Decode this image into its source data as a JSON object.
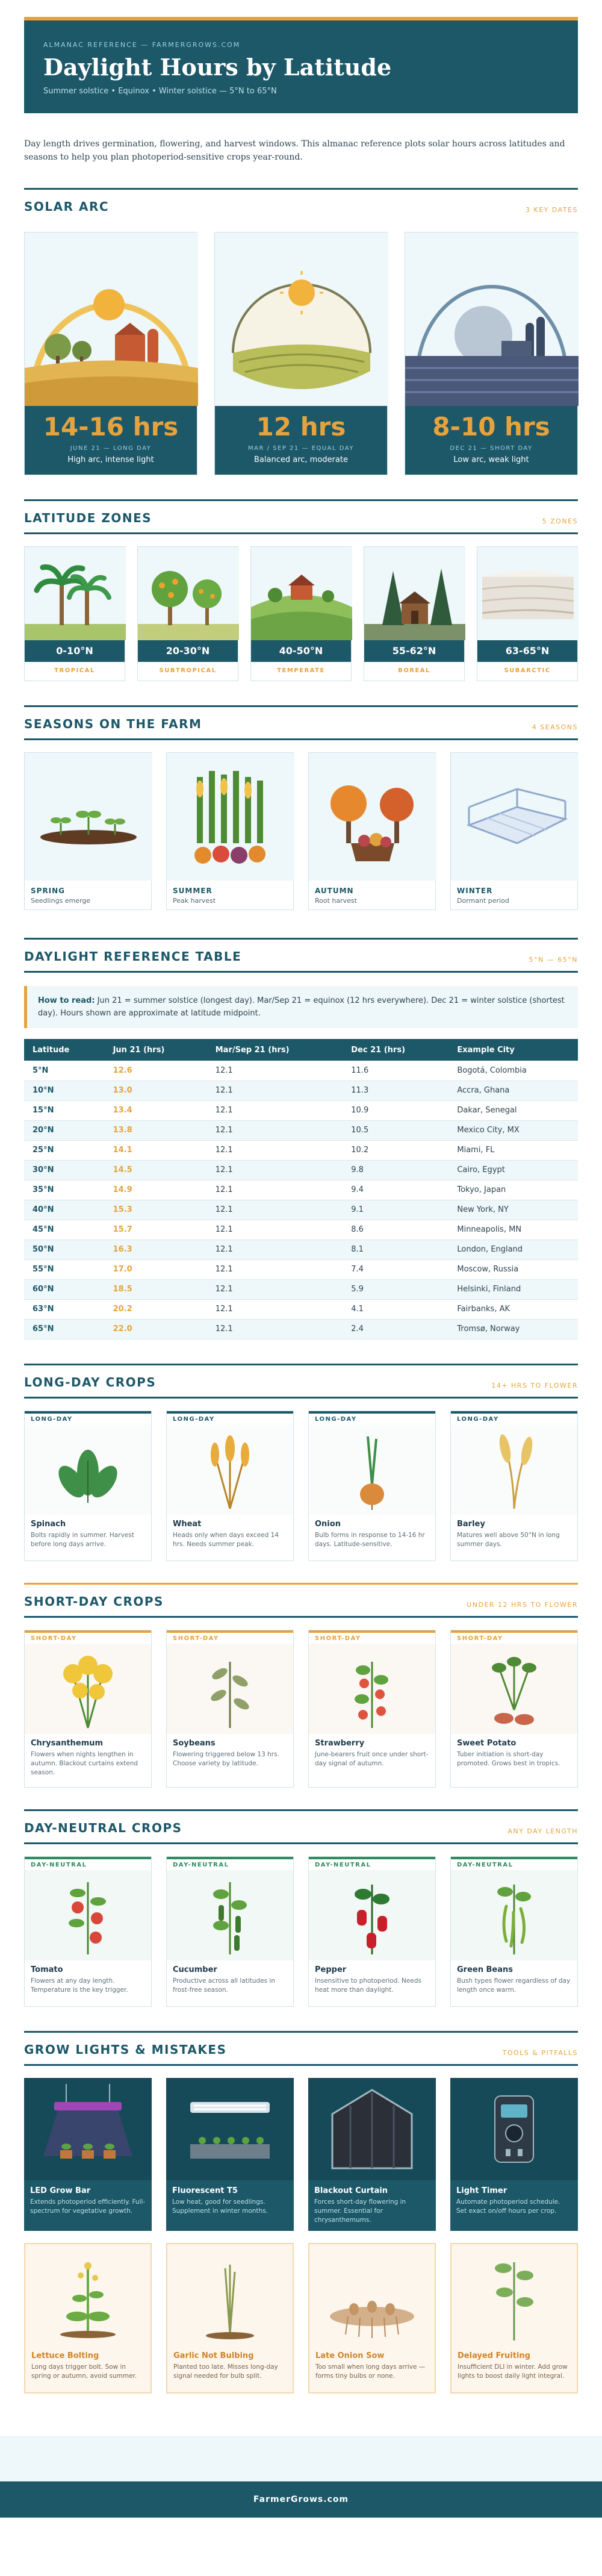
{
  "header": {
    "kicker": "ALMANAC REFERENCE — FARMERGROWS.COM",
    "title": "Daylight Hours by Latitude",
    "subtitle": "Summer solstice • Equinox • Winter solstice — 5°N to 65°N"
  },
  "intro": "Day length drives germination, flowering, and harvest windows. This almanac reference plots solar hours across latitudes and seasons to help you plan photoperiod-sensitive crops year-round.",
  "solar": {
    "title": "SOLAR ARC",
    "tag": "3 KEY DATES",
    "cards": [
      {
        "hours": "14-16 hrs",
        "date": "JUNE 21 — LONG DAY",
        "desc": "High arc, intense light"
      },
      {
        "hours": "12 hrs",
        "date": "MAR / SEP 21 — EQUAL DAY",
        "desc": "Balanced arc, moderate"
      },
      {
        "hours": "8-10 hrs",
        "date": "DEC 21 — SHORT DAY",
        "desc": "Low arc, weak light"
      }
    ]
  },
  "zones": {
    "title": "LATITUDE ZONES",
    "tag": "5 ZONES",
    "items": [
      {
        "range": "0-10°N",
        "name": "TROPICAL"
      },
      {
        "range": "20-30°N",
        "name": "SUBTROPICAL"
      },
      {
        "range": "40-50°N",
        "name": "TEMPERATE"
      },
      {
        "range": "55-62°N",
        "name": "BOREAL"
      },
      {
        "range": "63-65°N",
        "name": "SUBARCTIC"
      }
    ]
  },
  "seasons": {
    "title": "SEASONS ON THE FARM",
    "tag": "4 SEASONS",
    "items": [
      {
        "name": "SPRING",
        "sub": "Seedlings emerge"
      },
      {
        "name": "SUMMER",
        "sub": "Peak harvest"
      },
      {
        "name": "AUTUMN",
        "sub": "Root harvest"
      },
      {
        "name": "WINTER",
        "sub": "Dormant period"
      }
    ]
  },
  "table": {
    "title": "DAYLIGHT REFERENCE TABLE",
    "tag": "5°N — 65°N",
    "howto_label": "How to read:",
    "howto_text": "Jun 21 = summer solstice (longest day). Mar/Sep 21 = equinox (12 hrs everywhere). Dec 21 = winter solstice (shortest day). Hours shown are approximate at latitude midpoint.",
    "headers": [
      "Latitude",
      "Jun 21 (hrs)",
      "Mar/Sep 21 (hrs)",
      "Dec 21 (hrs)",
      "Example City"
    ],
    "rows": [
      [
        "5°N",
        "12.6",
        "12.1",
        "11.6",
        "Bogotá, Colombia"
      ],
      [
        "10°N",
        "13.0",
        "12.1",
        "11.3",
        "Accra, Ghana"
      ],
      [
        "15°N",
        "13.4",
        "12.1",
        "10.9",
        "Dakar, Senegal"
      ],
      [
        "20°N",
        "13.8",
        "12.1",
        "10.5",
        "Mexico City, MX"
      ],
      [
        "25°N",
        "14.1",
        "12.1",
        "10.2",
        "Miami, FL"
      ],
      [
        "30°N",
        "14.5",
        "12.1",
        "9.8",
        "Cairo, Egypt"
      ],
      [
        "35°N",
        "14.9",
        "12.1",
        "9.4",
        "Tokyo, Japan"
      ],
      [
        "40°N",
        "15.3",
        "12.1",
        "9.1",
        "New York, NY"
      ],
      [
        "45°N",
        "15.7",
        "12.1",
        "8.6",
        "Minneapolis, MN"
      ],
      [
        "50°N",
        "16.3",
        "12.1",
        "8.1",
        "London, England"
      ],
      [
        "55°N",
        "17.0",
        "12.1",
        "7.4",
        "Moscow, Russia"
      ],
      [
        "60°N",
        "18.5",
        "12.1",
        "5.9",
        "Helsinki, Finland"
      ],
      [
        "63°N",
        "20.2",
        "12.1",
        "4.1",
        "Fairbanks, AK"
      ],
      [
        "65°N",
        "22.0",
        "12.1",
        "2.4",
        "Tromsø, Norway"
      ]
    ]
  },
  "longday": {
    "title": "LONG-DAY CROPS",
    "tag": "14+ HRS TO FLOWER",
    "items": [
      {
        "tag": "LONG-DAY",
        "name": "Spinach",
        "desc": "Bolts rapidly in summer. Harvest before long days arrive."
      },
      {
        "tag": "LONG-DAY",
        "name": "Wheat",
        "desc": "Heads only when days exceed 14 hrs. Needs summer peak."
      },
      {
        "tag": "LONG-DAY",
        "name": "Onion",
        "desc": "Bulb forms in response to 14-16 hr days. Latitude-sensitive."
      },
      {
        "tag": "LONG-DAY",
        "name": "Barley",
        "desc": "Matures well above 50°N in long summer days."
      }
    ]
  },
  "shortday": {
    "title": "SHORT-DAY CROPS",
    "tag": "UNDER 12 HRS TO FLOWER",
    "items": [
      {
        "tag": "SHORT-DAY",
        "name": "Chrysanthemum",
        "desc": "Flowers when nights lengthen in autumn. Blackout curtains extend season."
      },
      {
        "tag": "SHORT-DAY",
        "name": "Soybeans",
        "desc": "Flowering triggered below 13 hrs. Choose variety by latitude."
      },
      {
        "tag": "SHORT-DAY",
        "name": "Strawberry",
        "desc": "June-bearers fruit once under short-day signal of autumn."
      },
      {
        "tag": "SHORT-DAY",
        "name": "Sweet Potato",
        "desc": "Tuber initiation is short-day promoted. Grows best in tropics."
      }
    ]
  },
  "neutral": {
    "title": "DAY-NEUTRAL CROPS",
    "tag": "ANY DAY LENGTH",
    "items": [
      {
        "tag": "DAY-NEUTRAL",
        "name": "Tomato",
        "desc": "Flowers at any day length. Temperature is the key trigger."
      },
      {
        "tag": "DAY-NEUTRAL",
        "name": "Cucumber",
        "desc": "Productive across all latitudes in frost-free season."
      },
      {
        "tag": "DAY-NEUTRAL",
        "name": "Pepper",
        "desc": "Insensitive to photoperiod. Needs heat more than daylight."
      },
      {
        "tag": "DAY-NEUTRAL",
        "name": "Green Beans",
        "desc": "Bush types flower regardless of day length once warm."
      }
    ]
  },
  "grow": {
    "title": "GROW LIGHTS & MISTAKES",
    "tag": "TOOLS & PITFALLS",
    "tools": [
      {
        "name": "LED Grow Bar",
        "desc": "Extends photoperiod efficiently. Full-spectrum for vegetative growth."
      },
      {
        "name": "Fluorescent T5",
        "desc": "Low heat, good for seedlings. Supplement in winter months."
      },
      {
        "name": "Blackout Curtain",
        "desc": "Forces short-day flowering in summer. Essential for chrysanthemums."
      },
      {
        "name": "Light Timer",
        "desc": "Automate photoperiod schedule. Set exact on/off hours per crop."
      }
    ],
    "mistakes": [
      {
        "name": "Lettuce Bolting",
        "desc": "Long days trigger bolt. Sow in spring or autumn, avoid summer."
      },
      {
        "name": "Garlic Not Bulbing",
        "desc": "Planted too late. Misses long-day signal needed for bulb split."
      },
      {
        "name": "Late Onion Sow",
        "desc": "Too small when long days arrive — forms tiny bulbs or none."
      },
      {
        "name": "Delayed Fruiting",
        "desc": "Insufficient DLI in winter. Add grow lights to boost daily light integral."
      }
    ]
  },
  "footer": "FarmerGrows.com",
  "colors": {
    "teal": "#1d5869",
    "gold": "#e7a23b",
    "green": "#2f8a5e",
    "pale": "#eef7f9"
  }
}
